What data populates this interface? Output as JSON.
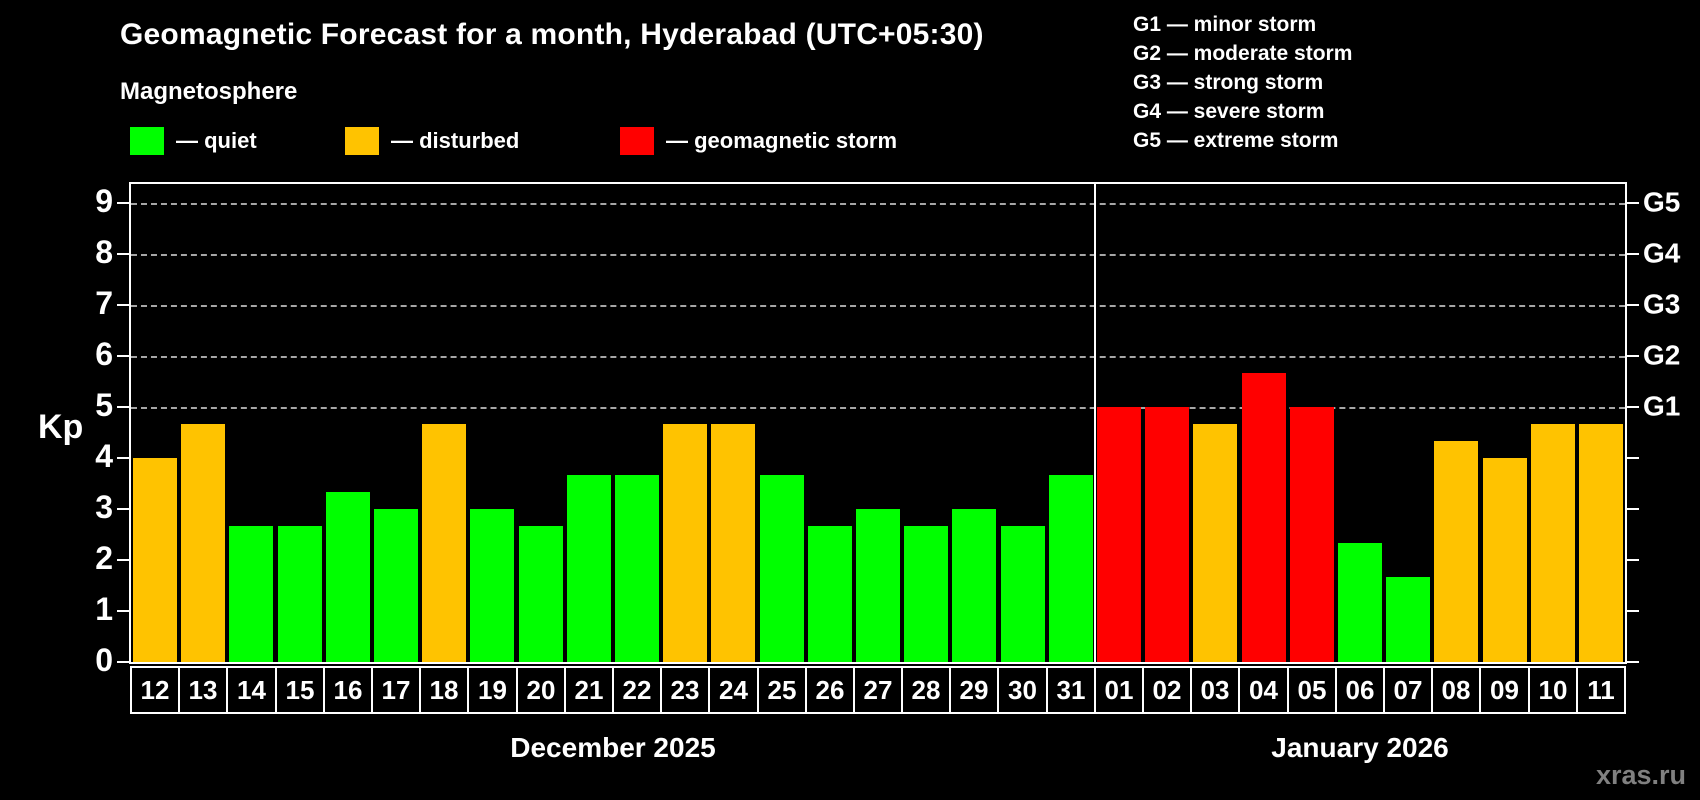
{
  "header": {
    "title": "Geomagnetic Forecast for a month, Hyderabad (UTC+05:30)",
    "subtitle": "Magnetosphere"
  },
  "legend": {
    "items": [
      {
        "label": "— quiet",
        "level": "quiet"
      },
      {
        "label": "— disturbed",
        "level": "disturbed"
      },
      {
        "label": "— geomagnetic storm",
        "level": "storm"
      }
    ]
  },
  "g_legend": [
    "G1 — minor storm",
    "G2 — moderate storm",
    "G3 — strong storm",
    "G4 — severe storm",
    "G5 — extreme storm"
  ],
  "colors": {
    "quiet": "#00ff00",
    "disturbed": "#ffc300",
    "storm": "#ff0000",
    "background": "#000000",
    "grid": "#a6a6a6",
    "frame": "#ffffff",
    "watermark": "#808080"
  },
  "watermark": "xras.ru",
  "chart_data": {
    "type": "bar",
    "title": "Geomagnetic Forecast for a month, Hyderabad (UTC+05:30)",
    "xlabel": "",
    "ylabel": "Kp",
    "ylim": [
      0,
      9.37
    ],
    "y_ticks": [
      0,
      1,
      2,
      3,
      4,
      5,
      6,
      7,
      8,
      9
    ],
    "grid_levels": [
      5,
      6,
      7,
      8,
      9
    ],
    "grid": "dashed horizontal at storm levels only",
    "legend_position": "above-left",
    "right_axis_ticks": [
      {
        "label": "G1",
        "kp": 5
      },
      {
        "label": "G2",
        "kp": 6
      },
      {
        "label": "G3",
        "kp": 7
      },
      {
        "label": "G4",
        "kp": 8
      },
      {
        "label": "G5",
        "kp": 9
      }
    ],
    "series": [
      {
        "month": "December 2025",
        "points": [
          {
            "day": "12",
            "kp": 4.0,
            "level": "disturbed"
          },
          {
            "day": "13",
            "kp": 4.67,
            "level": "disturbed"
          },
          {
            "day": "14",
            "kp": 2.67,
            "level": "quiet"
          },
          {
            "day": "15",
            "kp": 2.67,
            "level": "quiet"
          },
          {
            "day": "16",
            "kp": 3.33,
            "level": "quiet"
          },
          {
            "day": "17",
            "kp": 3.0,
            "level": "quiet"
          },
          {
            "day": "18",
            "kp": 4.67,
            "level": "disturbed"
          },
          {
            "day": "19",
            "kp": 3.0,
            "level": "quiet"
          },
          {
            "day": "20",
            "kp": 2.67,
            "level": "quiet"
          },
          {
            "day": "21",
            "kp": 3.67,
            "level": "quiet"
          },
          {
            "day": "22",
            "kp": 3.67,
            "level": "quiet"
          },
          {
            "day": "23",
            "kp": 4.67,
            "level": "disturbed"
          },
          {
            "day": "24",
            "kp": 4.67,
            "level": "disturbed"
          },
          {
            "day": "25",
            "kp": 3.67,
            "level": "quiet"
          },
          {
            "day": "26",
            "kp": 2.67,
            "level": "quiet"
          },
          {
            "day": "27",
            "kp": 3.0,
            "level": "quiet"
          },
          {
            "day": "28",
            "kp": 2.67,
            "level": "quiet"
          },
          {
            "day": "29",
            "kp": 3.0,
            "level": "quiet"
          },
          {
            "day": "30",
            "kp": 2.67,
            "level": "quiet"
          },
          {
            "day": "31",
            "kp": 3.67,
            "level": "quiet"
          }
        ]
      },
      {
        "month": "January 2026",
        "points": [
          {
            "day": "01",
            "kp": 5.0,
            "level": "storm"
          },
          {
            "day": "02",
            "kp": 5.0,
            "level": "storm"
          },
          {
            "day": "03",
            "kp": 4.67,
            "level": "disturbed"
          },
          {
            "day": "04",
            "kp": 5.67,
            "level": "storm"
          },
          {
            "day": "05",
            "kp": 5.0,
            "level": "storm"
          },
          {
            "day": "06",
            "kp": 2.33,
            "level": "quiet"
          },
          {
            "day": "07",
            "kp": 1.67,
            "level": "quiet"
          },
          {
            "day": "08",
            "kp": 4.33,
            "level": "disturbed"
          },
          {
            "day": "09",
            "kp": 4.0,
            "level": "disturbed"
          },
          {
            "day": "10",
            "kp": 4.67,
            "level": "disturbed"
          },
          {
            "day": "11",
            "kp": 4.67,
            "level": "disturbed"
          }
        ]
      }
    ]
  }
}
